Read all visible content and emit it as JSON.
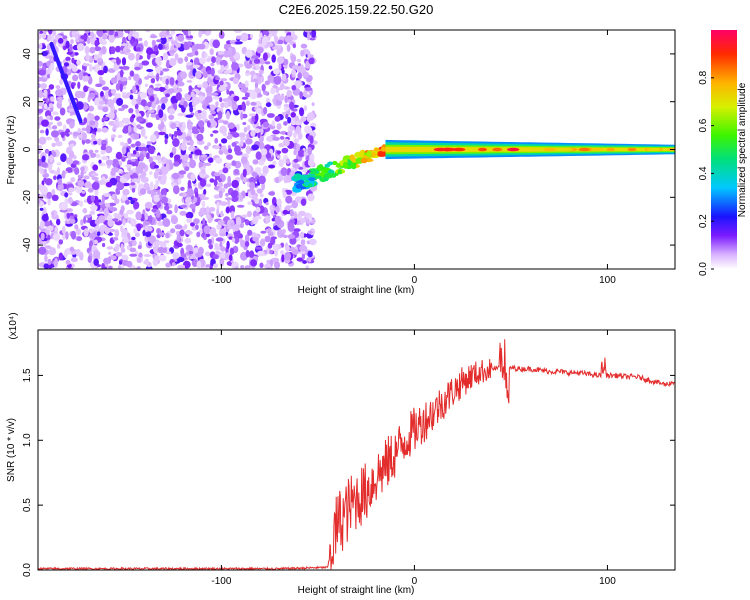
{
  "figure_title": "C2E6.2025.159.22.50.G20",
  "chart_data": [
    {
      "type": "heatmap",
      "title": "C2E6.2025.159.22.50.G20",
      "xlabel": "Height of straight line (km)",
      "ylabel": "Frequency (Hz)",
      "xlim": [
        -195,
        135
      ],
      "ylim": [
        -50,
        50
      ],
      "x_ticks": [
        -100,
        0,
        100
      ],
      "x_tick_labels": [
        "-100",
        "0",
        "100"
      ],
      "y_ticks": [
        -40,
        -20,
        0,
        20,
        40
      ],
      "y_tick_labels": [
        "-40",
        "-20",
        "0",
        "20",
        "40"
      ],
      "colorbar": {
        "label": "Normalized spectral amplitude",
        "range": [
          0,
          1
        ],
        "ticks": [
          0.0,
          0.2,
          0.4,
          0.6,
          0.8
        ],
        "tick_labels": [
          "0.0",
          "0.2",
          "0.4",
          "0.6",
          "0.8"
        ]
      },
      "regions": {
        "noise_x_range": [
          -195,
          -52
        ],
        "noise_frequency_range": [
          -50,
          50
        ],
        "noise_amplitude_range": [
          0.05,
          0.2
        ],
        "streak_x_range": [
          -188,
          -173
        ],
        "streak_frequency_range": [
          44,
          12
        ],
        "transition_x_range": [
          -62,
          -15
        ],
        "transition_frequency_range": [
          -14,
          0
        ],
        "band_x_range": [
          -15,
          135
        ],
        "band_frequency": 0,
        "band_halfwidth_hz": [
          4,
          2
        ],
        "band_peak_amplitude": 0.95
      }
    },
    {
      "type": "line",
      "xlabel": "Height of straight line (km)",
      "ylabel": "SNR (10 * v/v)",
      "y_scale_label": "(x10⁴)",
      "xlim": [
        -195,
        135
      ],
      "ylim": [
        0,
        1.85
      ],
      "x_ticks": [
        -100,
        0,
        100
      ],
      "x_tick_labels": [
        "-100",
        "0",
        "100"
      ],
      "y_ticks": [
        0,
        0.5,
        1.0,
        1.5
      ],
      "y_tick_labels": [
        "0.0",
        "0.5",
        "1.0",
        "1.5"
      ],
      "line_color": "#e32c2c",
      "series": [
        {
          "x": [
            -195,
            -130,
            -70,
            -45,
            -40,
            -35,
            -30,
            -25,
            -20,
            -15,
            -10,
            -5,
            0,
            5,
            10,
            15,
            20,
            25,
            30,
            35,
            40,
            45,
            47,
            50,
            55,
            60,
            65,
            70,
            75,
            80,
            85,
            90,
            95,
            100,
            105,
            110,
            115,
            120,
            125,
            130,
            135
          ],
          "y": [
            0.01,
            0.01,
            0.01,
            0.02,
            0.35,
            0.45,
            0.55,
            0.6,
            0.72,
            0.8,
            0.9,
            1.0,
            1.08,
            1.15,
            1.22,
            1.3,
            1.38,
            1.45,
            1.5,
            1.53,
            1.55,
            1.56,
            1.56,
            1.56,
            1.55,
            1.55,
            1.54,
            1.53,
            1.53,
            1.52,
            1.52,
            1.51,
            1.5,
            1.5,
            1.5,
            1.49,
            1.49,
            1.47,
            1.45,
            1.43,
            1.45
          ]
        }
      ]
    }
  ]
}
